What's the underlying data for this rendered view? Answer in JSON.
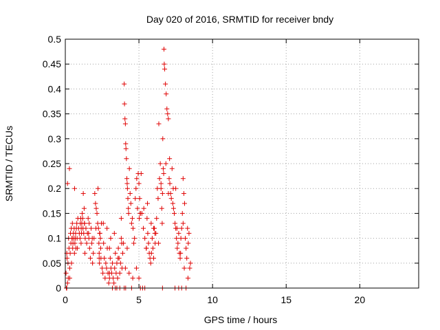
{
  "chart_data": {
    "type": "scatter",
    "title": "Day 020 of 2016, SRMTID for receiver bndy",
    "xlabel": "GPS time / hours",
    "ylabel": "SRMTID / TECUs",
    "xlim": [
      0,
      24
    ],
    "ylim": [
      0,
      0.5
    ],
    "xticks": [
      0,
      5,
      10,
      15,
      20
    ],
    "xtick_labels": [
      "0",
      "5",
      "10",
      "15",
      "20"
    ],
    "yticks": [
      0,
      0.05,
      0.1,
      0.15,
      0.2,
      0.25,
      0.3,
      0.35,
      0.4,
      0.45,
      0.5
    ],
    "ytick_labels": [
      "0",
      "0.05",
      "0.1",
      "0.15",
      "0.2",
      "0.25",
      "0.3",
      "0.35",
      "0.4",
      "0.45",
      "0.5"
    ],
    "grid": true,
    "marker": "+",
    "color": "#e00000",
    "series": [
      {
        "name": "SRMTID",
        "x": [
          0.05,
          0.1,
          0.12,
          0.18,
          0.2,
          0.22,
          0.25,
          0.3,
          0.33,
          0.35,
          0.38,
          0.4,
          0.42,
          0.45,
          0.48,
          0.5,
          0.52,
          0.55,
          0.58,
          0.6,
          0.62,
          0.65,
          0.68,
          0.7,
          0.72,
          0.75,
          0.78,
          0.8,
          0.85,
          0.9,
          0.95,
          1.0,
          1.02,
          1.05,
          1.08,
          1.1,
          1.12,
          1.15,
          1.18,
          1.2,
          1.22,
          1.25,
          1.28,
          1.3,
          1.35,
          1.4,
          1.45,
          1.5,
          1.55,
          1.6,
          1.62,
          1.65,
          1.7,
          1.75,
          1.8,
          1.85,
          1.9,
          1.95,
          2.0,
          2.05,
          2.1,
          2.15,
          2.2,
          2.22,
          2.25,
          2.28,
          2.3,
          2.32,
          2.35,
          2.38,
          2.4,
          2.42,
          2.45,
          2.5,
          2.55,
          2.6,
          2.65,
          2.7,
          2.75,
          2.8,
          2.85,
          2.9,
          2.95,
          3.0,
          3.05,
          3.1,
          3.15,
          3.2,
          3.25,
          3.3,
          3.35,
          3.4,
          3.45,
          3.5,
          3.55,
          3.6,
          3.65,
          3.7,
          3.75,
          3.8,
          3.85,
          3.9,
          3.95,
          4.0,
          4.02,
          4.05,
          4.08,
          4.1,
          4.12,
          4.15,
          4.18,
          4.2,
          4.22,
          4.25,
          4.28,
          4.3,
          4.35,
          4.4,
          4.45,
          4.5,
          4.55,
          4.6,
          4.65,
          4.7,
          4.75,
          4.8,
          4.85,
          4.9,
          4.95,
          5.0,
          5.02,
          5.05,
          5.1,
          5.15,
          5.2,
          5.3,
          5.4,
          5.5,
          5.55,
          5.6,
          5.65,
          5.7,
          5.75,
          5.8,
          5.85,
          5.9,
          5.95,
          6.0,
          6.05,
          6.1,
          6.15,
          6.2,
          6.25,
          6.3,
          6.35,
          6.4,
          6.45,
          6.5,
          6.55,
          6.6,
          6.62,
          6.65,
          6.68,
          6.7,
          6.72,
          6.75,
          6.8,
          6.85,
          6.9,
          6.95,
          7.0,
          7.05,
          7.1,
          7.15,
          7.2,
          7.25,
          7.3,
          7.35,
          7.4,
          7.45,
          7.5,
          7.55,
          7.6,
          7.65,
          7.7,
          7.75,
          7.8,
          7.85,
          7.9,
          7.95,
          8.0,
          8.05,
          8.1,
          8.15,
          8.2,
          8.25,
          8.3,
          8.35,
          8.4,
          8.45,
          8.5,
          0.1,
          1.3,
          2.3,
          3.0,
          3.4,
          3.8,
          4.2,
          4.5,
          5.0,
          5.5,
          6.0,
          6.5,
          7.0,
          7.5,
          8.0,
          0.15,
          0.28,
          0.47,
          0.63,
          0.82,
          1.07,
          1.33,
          1.58,
          1.83,
          2.08,
          2.33,
          2.58,
          2.83,
          3.08,
          3.33,
          3.58,
          3.83,
          4.08,
          4.33,
          4.58,
          4.83,
          5.08,
          5.33,
          5.58,
          5.83,
          6.08,
          6.33,
          6.58,
          6.83,
          7.08,
          7.33,
          7.58,
          7.83,
          8.08,
          8.33,
          0.07,
          0.15,
          0.3,
          3.0,
          3.2,
          3.5,
          3.7,
          4.0,
          4.1,
          5.1,
          5.25,
          5.4,
          6.6,
          7.45,
          7.7,
          7.9,
          8.2
        ],
        "y": [
          0.03,
          0.0,
          0.06,
          0.05,
          0.02,
          0.1,
          0.08,
          0.04,
          0.07,
          0.11,
          0.09,
          0.12,
          0.05,
          0.1,
          0.13,
          0.08,
          0.09,
          0.11,
          0.1,
          0.12,
          0.07,
          0.09,
          0.1,
          0.11,
          0.08,
          0.12,
          0.13,
          0.1,
          0.14,
          0.12,
          0.11,
          0.1,
          0.13,
          0.14,
          0.12,
          0.11,
          0.13,
          0.15,
          0.14,
          0.12,
          0.19,
          0.11,
          0.16,
          0.13,
          0.1,
          0.12,
          0.09,
          0.11,
          0.14,
          0.1,
          0.13,
          0.08,
          0.06,
          0.12,
          0.09,
          0.05,
          0.07,
          0.1,
          0.19,
          0.17,
          0.16,
          0.15,
          0.13,
          0.2,
          0.12,
          0.09,
          0.07,
          0.05,
          0.11,
          0.1,
          0.08,
          0.06,
          0.13,
          0.04,
          0.03,
          0.09,
          0.06,
          0.02,
          0.05,
          0.04,
          0.08,
          0.03,
          0.01,
          0.02,
          0.06,
          0.04,
          0.03,
          0.05,
          0.02,
          0.01,
          0.04,
          0.07,
          0.03,
          0.05,
          0.02,
          0.08,
          0.06,
          0.03,
          0.05,
          0.1,
          0.04,
          0.07,
          0.09,
          0.41,
          0.37,
          0.34,
          0.33,
          0.29,
          0.28,
          0.26,
          0.22,
          0.21,
          0.2,
          0.18,
          0.16,
          0.15,
          0.24,
          0.19,
          0.17,
          0.13,
          0.14,
          0.12,
          0.09,
          0.1,
          0.18,
          0.2,
          0.22,
          0.16,
          0.23,
          0.21,
          0.14,
          0.18,
          0.15,
          0.23,
          0.15,
          0.12,
          0.1,
          0.08,
          0.14,
          0.11,
          0.09,
          0.07,
          0.06,
          0.05,
          0.07,
          0.1,
          0.08,
          0.06,
          0.12,
          0.09,
          0.11,
          0.14,
          0.2,
          0.18,
          0.33,
          0.22,
          0.25,
          0.2,
          0.16,
          0.19,
          0.3,
          0.24,
          0.23,
          0.48,
          0.45,
          0.44,
          0.41,
          0.39,
          0.36,
          0.35,
          0.34,
          0.22,
          0.21,
          0.19,
          0.18,
          0.24,
          0.17,
          0.16,
          0.15,
          0.13,
          0.12,
          0.1,
          0.08,
          0.09,
          0.11,
          0.07,
          0.06,
          0.1,
          0.12,
          0.15,
          0.13,
          0.19,
          0.17,
          0.1,
          0.08,
          0.06,
          0.12,
          0.09,
          0.11,
          0.04,
          0.05,
          0.07,
          0.13,
          0.06,
          0.08,
          0.0,
          0.14,
          0.08,
          0.0,
          0.02,
          0.08,
          0.12,
          0.21,
          0.19,
          0.2,
          0.22,
          0.21,
          0.24,
          0.1,
          0.2,
          0.08,
          0.09,
          0.07,
          0.11,
          0.1,
          0.12,
          0.11,
          0.13,
          0.12,
          0.1,
          0.11,
          0.06,
          0.09,
          0.04,
          0.03,
          0.02,
          0.04,
          0.15,
          0.16,
          0.17,
          0.13,
          0.11,
          0.09,
          0.13,
          0.25,
          0.26,
          0.2,
          0.12,
          0.07,
          0.04,
          0.02,
          0.0,
          0.01,
          0.02,
          0.03,
          0.0,
          0.0,
          0.0,
          0.0,
          0.0,
          0.0,
          0.0,
          0.0,
          0.0,
          0.0,
          0.0,
          0.0,
          0.0
        ]
      }
    ]
  }
}
